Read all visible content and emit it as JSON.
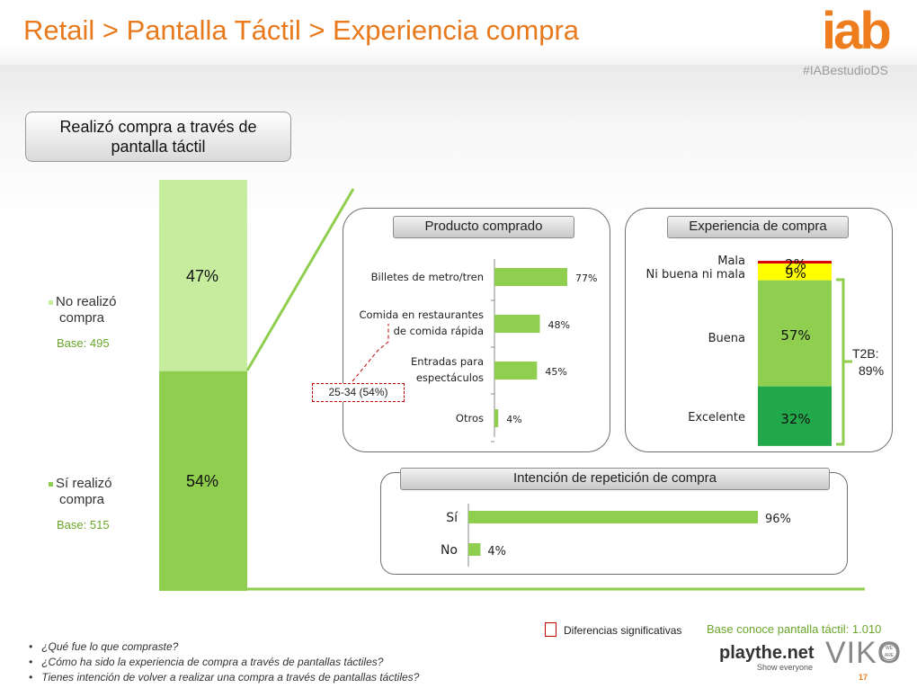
{
  "header": {
    "title": "Retail > Pantalla Táctil > Experiencia compra",
    "logo": "iab",
    "hashtag": "#IABestudioDS"
  },
  "left_box": {
    "line1": "Realizó compra a través de",
    "line2": "pantalla táctil"
  },
  "colors": {
    "dark_green": "#8fce4e",
    "light_green": "#c6ec9d",
    "deep_green": "#21a84a",
    "yellow": "#ffff00",
    "red": "#d80000",
    "orange": "#e8791c",
    "grey_pill": "#d6d6d6"
  },
  "legend": {
    "no": {
      "label_line1": "No realizó",
      "label_line2": "compra",
      "base": "Base: 495"
    },
    "si": {
      "label_line1": "Sí realizó",
      "label_line2": "compra",
      "base": "Base: 515"
    }
  },
  "chart_data": [
    {
      "type": "bar",
      "stacked": true,
      "categories": [
        "Realizó compra a través de pantalla táctil"
      ],
      "series": [
        {
          "name": "Sí realizó compra",
          "values": [
            54
          ],
          "label": "54%"
        },
        {
          "name": "No realizó compra",
          "values": [
            47
          ],
          "label": "47%"
        }
      ]
    },
    {
      "type": "bar",
      "orientation": "horizontal",
      "title": "Producto comprado",
      "categories": [
        "Billetes de metro/tren",
        "Comida en restaurantes de comida rápida",
        "Entradas para espectáculos",
        "Otros"
      ],
      "category_lines": [
        [
          "Billetes de metro/tren"
        ],
        [
          "Comida en restaurantes",
          "de comida rápida"
        ],
        [
          "Entradas para",
          "espectáculos"
        ],
        [
          "Otros"
        ]
      ],
      "values": [
        77,
        48,
        45,
        4
      ],
      "labels": [
        "77%",
        "48%",
        "45%",
        "4%"
      ],
      "xlim": [
        0,
        100
      ]
    },
    {
      "type": "bar",
      "stacked": true,
      "title": "Experiencia de compra",
      "categories": [
        "Mala",
        "Ni buena ni mala",
        "Buena",
        "Excelente"
      ],
      "values": [
        2,
        9,
        57,
        32
      ],
      "labels": [
        "2%",
        "9%",
        "57%",
        "32%"
      ],
      "bracket_label": "T2B:",
      "bracket_value": "89%"
    },
    {
      "type": "bar",
      "orientation": "horizontal",
      "title": "Intención de repetición de compra",
      "categories": [
        "Sí",
        "No"
      ],
      "values": [
        96,
        4
      ],
      "labels": [
        "96%",
        "4%"
      ],
      "xlim": [
        0,
        100
      ]
    }
  ],
  "callout": {
    "text": "25-34 (54%)"
  },
  "footer": {
    "sig_text": "Diferencias significativas",
    "base_text": "Base conoce pantalla táctil: 1.010",
    "questions": [
      "¿Qué fue lo que compraste?",
      "¿Cómo ha sido la experiencia de compra a través de pantallas táctiles?",
      "Tienes intención de volver a realizar una compra a través de pantallas táctiles?"
    ],
    "bullet": "•",
    "brand1": "playthe.net",
    "brand1_tagline": "Show everyone",
    "brand2": "VIKO",
    "brand2_badge": "WE ARE",
    "page_number": "17"
  }
}
